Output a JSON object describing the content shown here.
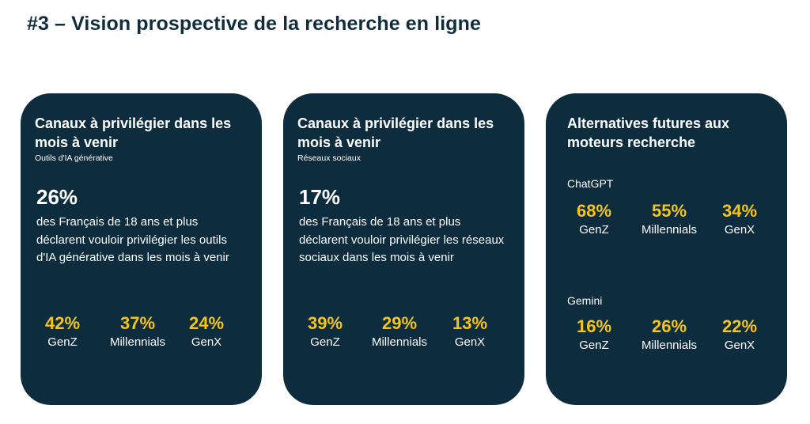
{
  "page": {
    "title": "#3 – Vision prospective de la recherche en ligne"
  },
  "cards": [
    {
      "heading": "Canaux à privilégier dans les mois à venir",
      "subheading": "Outils d'IA générative",
      "big_stat": "26%",
      "description": "des Français de 18 ans et plus déclarent vouloir privilégier les outils d'IA générative dans les mois à venir",
      "stats": [
        {
          "value": "42%",
          "label": "GenZ"
        },
        {
          "value": "37%",
          "label": "Millennials"
        },
        {
          "value": "24%",
          "label": "GenX"
        }
      ]
    },
    {
      "heading": "Canaux à privilégier dans les mois à venir",
      "subheading": "Réseaux sociaux",
      "big_stat": "17%",
      "description": "des Français de 18 ans et plus déclarent vouloir privilégier les réseaux sociaux dans les mois à venir",
      "stats": [
        {
          "value": "39%",
          "label": "GenZ"
        },
        {
          "value": "29%",
          "label": "Millennials"
        },
        {
          "value": "13%",
          "label": "GenX"
        }
      ]
    },
    {
      "heading": "Alternatives futures aux moteurs recherche",
      "sections": [
        {
          "label": "ChatGPT",
          "stats": [
            {
              "value": "68%",
              "label": "GenZ"
            },
            {
              "value": "55%",
              "label": "Millennials"
            },
            {
              "value": "34%",
              "label": "GenX"
            }
          ]
        },
        {
          "label": "Gemini",
          "stats": [
            {
              "value": "16%",
              "label": "GenZ"
            },
            {
              "value": "26%",
              "label": "Millennials"
            },
            {
              "value": "22%",
              "label": "GenX"
            }
          ]
        }
      ]
    }
  ],
  "colors": {
    "card_background": "#0d2d3e",
    "accent_yellow": "#f5c518",
    "title_text": "#0f2d3d"
  }
}
